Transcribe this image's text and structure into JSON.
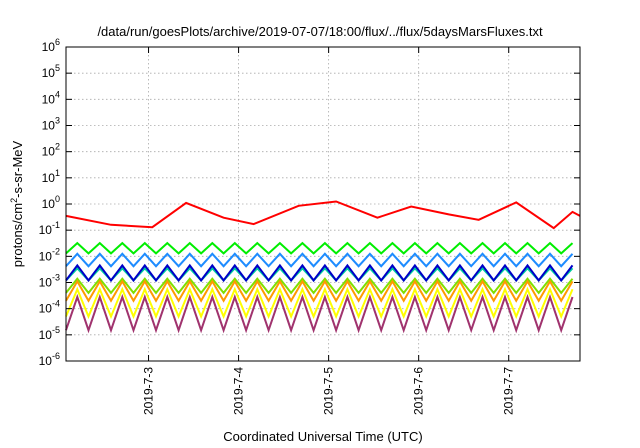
{
  "chart_data": {
    "type": "line",
    "title": "/data/run/goesPlots/archive/2019-07-07/18:00/flux/../flux/5daysMarsFluxes.txt",
    "xlabel": "Coordinated Universal Time (UTC)",
    "ylabel_parts": {
      "base": "protons/cm",
      "sup": "2",
      "rest": "-s-sr-MeV"
    },
    "y_scale": "log",
    "ylim_exp": [
      -6,
      6
    ],
    "ytick_exponents": [
      -6,
      -5,
      -4,
      -3,
      -2,
      -1,
      0,
      1,
      2,
      3,
      4,
      5,
      6
    ],
    "ytick_base": "10",
    "x_start": "2019-07-02T02:00",
    "x_end": "2019-07-07T19:00",
    "xticks": [
      {
        "date": "2019-07-03",
        "label": "2019-7-3"
      },
      {
        "date": "2019-07-04",
        "label": "2019-7-4"
      },
      {
        "date": "2019-07-05",
        "label": "2019-7-5"
      },
      {
        "date": "2019-07-06",
        "label": "2019-7-6"
      },
      {
        "date": "2019-07-07",
        "label": "2019-7-7"
      }
    ],
    "grid": true,
    "legend": "none",
    "series": [
      {
        "color": "#ff0000",
        "kind": "trend",
        "points": [
          [
            "2019-07-02T02:00",
            0.35
          ],
          [
            "2019-07-02T14:00",
            0.16
          ],
          [
            "2019-07-03T01:00",
            0.13
          ],
          [
            "2019-07-03T10:00",
            1.1
          ],
          [
            "2019-07-03T20:00",
            0.3
          ],
          [
            "2019-07-04T04:00",
            0.17
          ],
          [
            "2019-07-04T16:00",
            0.85
          ],
          [
            "2019-07-05T02:00",
            1.25
          ],
          [
            "2019-07-05T13:00",
            0.3
          ],
          [
            "2019-07-05T22:00",
            0.8
          ],
          [
            "2019-07-06T08:00",
            0.4
          ],
          [
            "2019-07-06T16:00",
            0.25
          ],
          [
            "2019-07-07T02:00",
            1.15
          ],
          [
            "2019-07-07T12:00",
            0.12
          ],
          [
            "2019-07-07T17:00",
            0.5
          ],
          [
            "2019-07-07T19:00",
            0.35
          ]
        ]
      },
      {
        "color": "#00ee00",
        "kind": "sawtooth",
        "high": 0.032,
        "low": 0.013
      },
      {
        "color": "#1e8cff",
        "kind": "sawtooth",
        "high": 0.0125,
        "low": 0.0042
      },
      {
        "color": "#00d0a0",
        "kind": "sawtooth",
        "high": 0.0035,
        "low": 0.0012
      },
      {
        "color": "#0000c8",
        "kind": "sawtooth",
        "high": 0.0045,
        "low": 0.0012
      },
      {
        "color": "#7fe000",
        "kind": "sawtooth",
        "high": 0.0014,
        "low": 0.0004
      },
      {
        "color": "#ff9a00",
        "kind": "sawtooth",
        "high": 0.0011,
        "low": 0.0002
      },
      {
        "color": "#ffff00",
        "kind": "sawtooth",
        "high": 0.00055,
        "low": 5e-05
      },
      {
        "color": "#a0336e",
        "kind": "sawtooth",
        "high": 0.00028,
        "low": 1.5e-05
      }
    ]
  }
}
